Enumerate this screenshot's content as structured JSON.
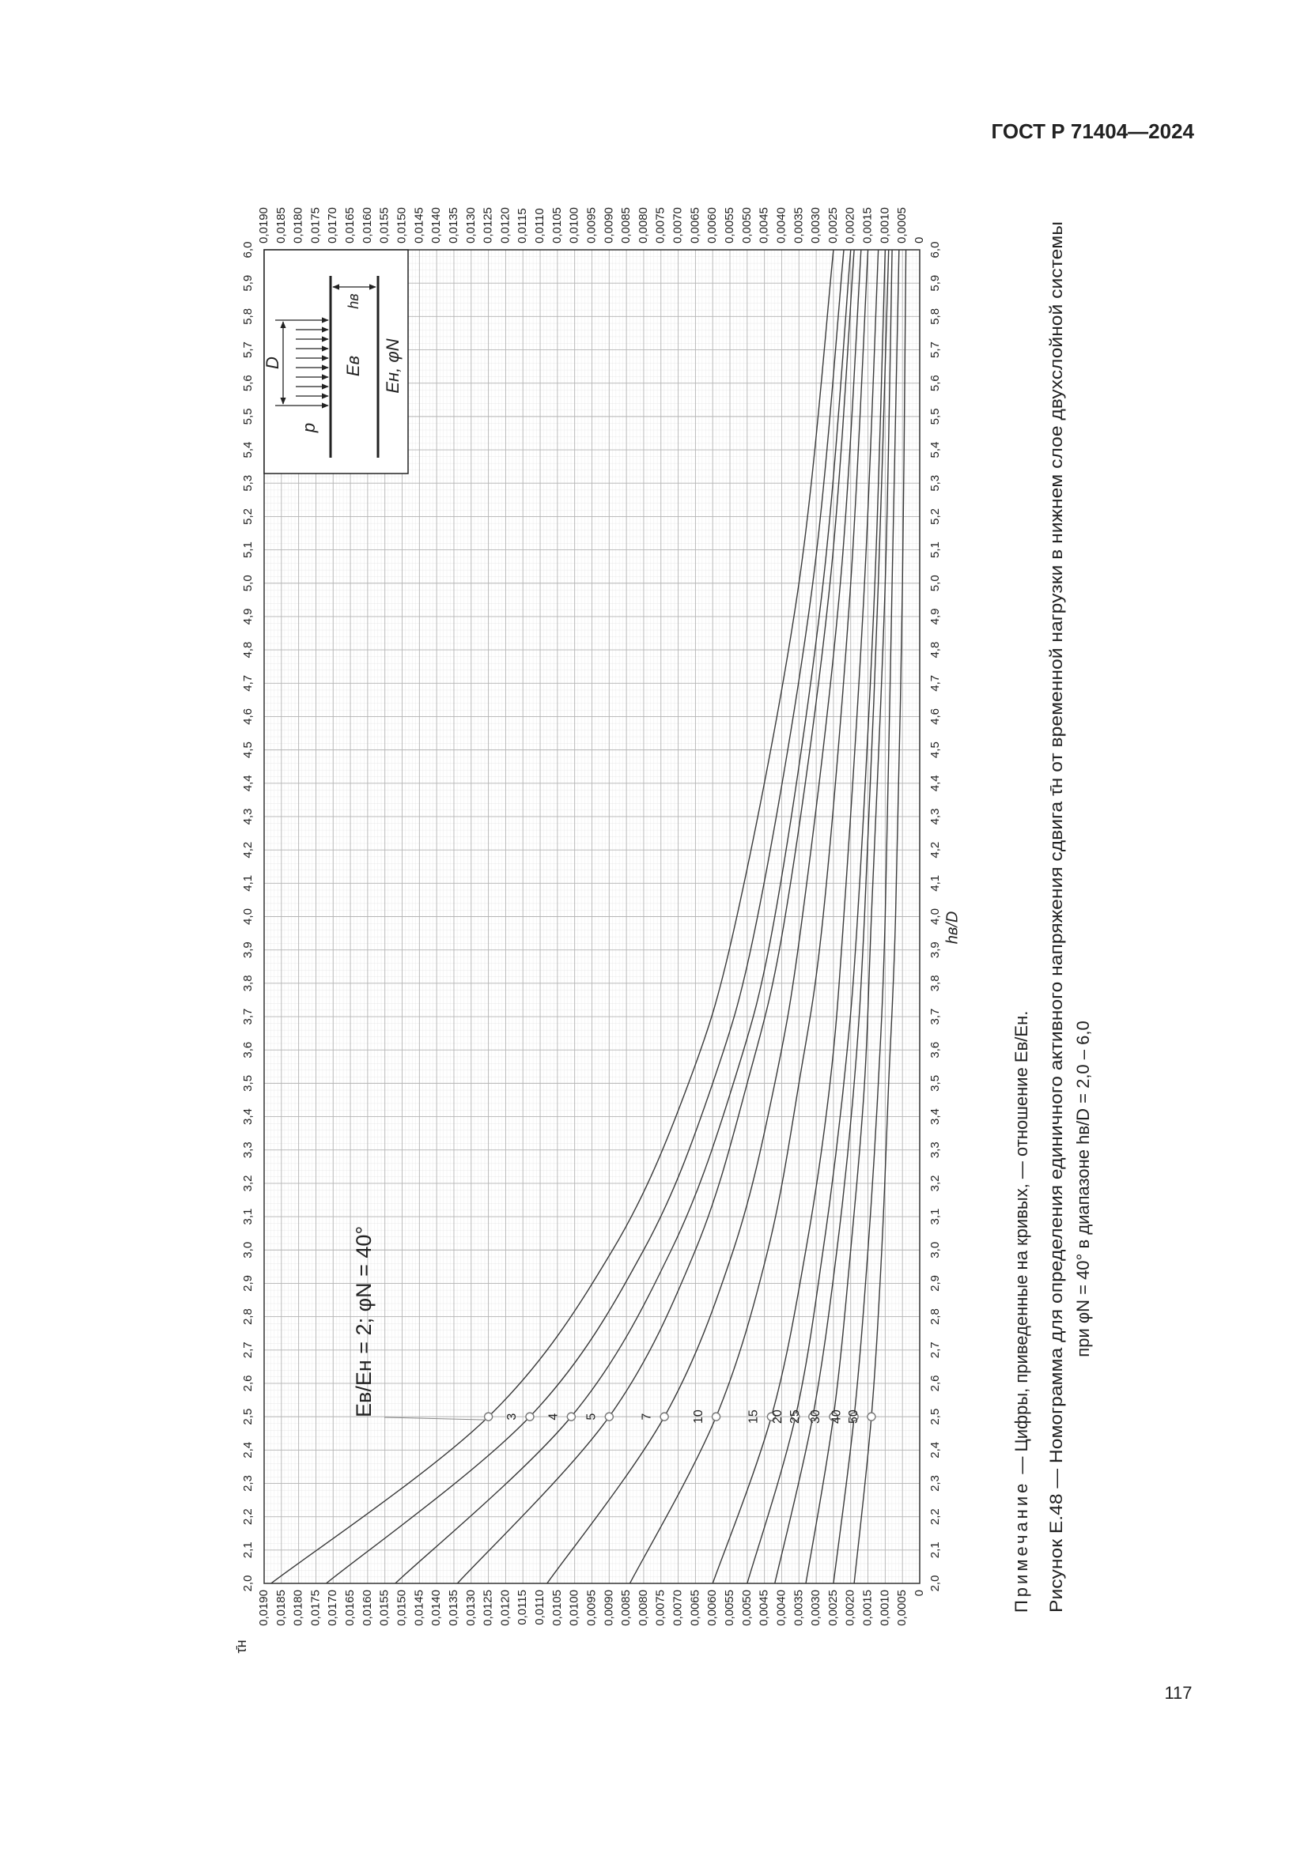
{
  "header": {
    "title": "ГОСТ Р 71404—2024"
  },
  "chart_data": {
    "type": "line",
    "x_label": "hв/D",
    "y_label": "τ̄н",
    "annotation": {
      "prefix": "Eв/Eн = ",
      "suffix": "; φN = 40°"
    },
    "x": [
      2.0,
      2.5,
      3.0,
      3.5,
      4.0,
      5.0,
      6.0
    ],
    "series": [
      {
        "name": "2",
        "color": "#3a3a3a",
        "values": [
          0.0188,
          0.0125,
          0.0089,
          0.0067,
          0.0053,
          0.0035,
          0.0025
        ]
      },
      {
        "name": "3",
        "color": "#3a3a3a",
        "values": [
          0.0172,
          0.0113,
          0.008,
          0.006,
          0.0047,
          0.0031,
          0.0022
        ]
      },
      {
        "name": "4",
        "color": "#3a3a3a",
        "values": [
          0.0152,
          0.0101,
          0.0072,
          0.0054,
          0.0042,
          0.0028,
          0.002
        ]
      },
      {
        "name": "5",
        "color": "#3a3a3a",
        "values": [
          0.0134,
          0.009,
          0.0065,
          0.005,
          0.0039,
          0.0026,
          0.0019
        ]
      },
      {
        "name": "7",
        "color": "#3a3a3a",
        "values": [
          0.0108,
          0.0074,
          0.0054,
          0.0042,
          0.0034,
          0.0023,
          0.0017
        ]
      },
      {
        "name": "10",
        "color": "#3a3a3a",
        "values": [
          0.0084,
          0.0059,
          0.0044,
          0.0035,
          0.0028,
          0.002,
          0.0015
        ]
      },
      {
        "name": "15",
        "color": "#3a3a3a",
        "values": [
          0.006,
          0.0043,
          0.0033,
          0.0026,
          0.0022,
          0.0016,
          0.0012
        ]
      },
      {
        "name": "20",
        "color": "#3a3a3a",
        "values": [
          0.005,
          0.0036,
          0.0028,
          0.0022,
          0.0018,
          0.0013,
          0.001
        ]
      },
      {
        "name": "25",
        "color": "#3a3a3a",
        "values": [
          0.0042,
          0.0031,
          0.0024,
          0.0019,
          0.0016,
          0.0012,
          0.0009
        ]
      },
      {
        "name": "30",
        "color": "#3a3a3a",
        "values": [
          0.0033,
          0.0025,
          0.002,
          0.0016,
          0.0014,
          0.001,
          0.0008
        ]
      },
      {
        "name": "40",
        "color": "#3a3a3a",
        "values": [
          0.0025,
          0.0019,
          0.0015,
          0.0012,
          0.001,
          0.0008,
          0.0006
        ]
      },
      {
        "name": "50",
        "color": "#3a3a3a",
        "values": [
          0.0019,
          0.0014,
          0.0011,
          0.0009,
          0.0007,
          0.0005,
          0.0004
        ]
      }
    ],
    "xlim": [
      2.0,
      6.0
    ],
    "ylim": [
      0,
      0.019
    ],
    "xticks": [
      {
        "value": 2.0,
        "label": "2,0"
      },
      {
        "value": 2.1,
        "label": "2,1"
      },
      {
        "value": 2.2,
        "label": "2,2"
      },
      {
        "value": 2.3,
        "label": "2,3"
      },
      {
        "value": 2.4,
        "label": "2,4"
      },
      {
        "value": 2.5,
        "label": "2,5"
      },
      {
        "value": 2.6,
        "label": "2,6"
      },
      {
        "value": 2.7,
        "label": "2,7"
      },
      {
        "value": 2.8,
        "label": "2,8"
      },
      {
        "value": 2.9,
        "label": "2,9"
      },
      {
        "value": 3.0,
        "label": "3,0"
      },
      {
        "value": 3.1,
        "label": "3,1"
      },
      {
        "value": 3.2,
        "label": "3,2"
      },
      {
        "value": 3.3,
        "label": "3,3"
      },
      {
        "value": 3.4,
        "label": "3,4"
      },
      {
        "value": 3.5,
        "label": "3,5"
      },
      {
        "value": 3.6,
        "label": "3,6"
      },
      {
        "value": 3.7,
        "label": "3,7"
      },
      {
        "value": 3.8,
        "label": "3,8"
      },
      {
        "value": 3.9,
        "label": "3,9"
      },
      {
        "value": 4.0,
        "label": "4,0"
      },
      {
        "value": 4.1,
        "label": "4,1"
      },
      {
        "value": 4.2,
        "label": "4,2"
      },
      {
        "value": 4.3,
        "label": "4,3"
      },
      {
        "value": 4.4,
        "label": "4,4"
      },
      {
        "value": 4.5,
        "label": "4,5"
      },
      {
        "value": 4.6,
        "label": "4,6"
      },
      {
        "value": 4.7,
        "label": "4,7"
      },
      {
        "value": 4.8,
        "label": "4,8"
      },
      {
        "value": 4.9,
        "label": "4,9"
      },
      {
        "value": 5.0,
        "label": "5,0"
      },
      {
        "value": 5.1,
        "label": "5,1"
      },
      {
        "value": 5.2,
        "label": "5,2"
      },
      {
        "value": 5.3,
        "label": "5,3"
      },
      {
        "value": 5.4,
        "label": "5,4"
      },
      {
        "value": 5.5,
        "label": "5,5"
      },
      {
        "value": 5.6,
        "label": "5,6"
      },
      {
        "value": 5.7,
        "label": "5,7"
      },
      {
        "value": 5.8,
        "label": "5,8"
      },
      {
        "value": 5.9,
        "label": "5,9"
      },
      {
        "value": 6.0,
        "label": "6,0"
      }
    ],
    "yticks": [
      0,
      {
        "value": 0.0005,
        "label": "0,0005"
      },
      {
        "value": 0.001,
        "label": "0,0010"
      },
      {
        "value": 0.0015,
        "label": "0,0015"
      },
      {
        "value": 0.002,
        "label": "0,0020"
      },
      {
        "value": 0.0025,
        "label": "0,0025"
      },
      {
        "value": 0.003,
        "label": "0,0030"
      },
      {
        "value": 0.0035,
        "label": "0,0035"
      },
      {
        "value": 0.004,
        "label": "0,0040"
      },
      {
        "value": 0.0045,
        "label": "0,0045"
      },
      {
        "value": 0.005,
        "label": "0,0050"
      },
      {
        "value": 0.0055,
        "label": "0,0055"
      },
      {
        "value": 0.006,
        "label": "0,0060"
      },
      {
        "value": 0.0065,
        "label": "0,0065"
      },
      {
        "value": 0.007,
        "label": "0,0070"
      },
      {
        "value": 0.0075,
        "label": "0,0075"
      },
      {
        "value": 0.008,
        "label": "0,0080"
      },
      {
        "value": 0.0085,
        "label": "0,0085"
      },
      {
        "value": 0.009,
        "label": "0,0090"
      },
      {
        "value": 0.0095,
        "label": "0,0095"
      },
      {
        "value": 0.01,
        "label": "0,0100"
      },
      {
        "value": 0.0105,
        "label": "0,0105"
      },
      {
        "value": 0.011,
        "label": "0,0110"
      },
      {
        "value": 0.0115,
        "label": "0,0115"
      },
      {
        "value": 0.012,
        "label": "0,0120"
      },
      {
        "value": 0.0125,
        "label": "0,0125"
      },
      {
        "value": 0.013,
        "label": "0,0130"
      },
      {
        "value": 0.0135,
        "label": "0,0135"
      },
      {
        "value": 0.014,
        "label": "0,0140"
      },
      {
        "value": 0.0145,
        "label": "0,0145"
      },
      {
        "value": 0.015,
        "label": "0,0150"
      },
      {
        "value": 0.0155,
        "label": "0,0155"
      },
      {
        "value": 0.016,
        "label": "0,0160"
      },
      {
        "value": 0.0165,
        "label": "0,0165"
      },
      {
        "value": 0.017,
        "label": "0,0170"
      },
      {
        "value": 0.0175,
        "label": "0,0175"
      },
      {
        "value": 0.018,
        "label": "0,0180"
      },
      {
        "value": 0.0185,
        "label": "0,0185"
      },
      {
        "value": 0.019,
        "label": "0,0190"
      }
    ],
    "grid": true
  },
  "inset": {
    "load": "p",
    "diameter": "D",
    "upper_layer": "Eв",
    "lower_layer": "Eн, φN",
    "thickness": "hв"
  },
  "note": {
    "label": "Примечание",
    "text": "— Цифры, приведенные на кривых, — отношение Eв/Eн."
  },
  "caption": [
    "Рисунок Е.48 — Номограмма для определения единичного активного напряжения сдвига τ̄н от временной нагрузки в нижнем слое двухслойной системы",
    "при φN = 40° в диапазоне hв/D = 2,0 – 6,0"
  ],
  "page_number": "117"
}
